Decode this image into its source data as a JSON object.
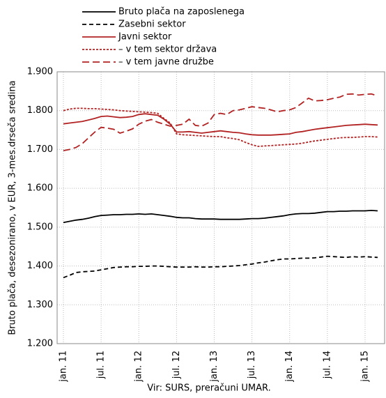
{
  "chart_data": {
    "type": "line",
    "y_label": "Bruto plača, desezonirano, v EUR, 3-mes.drseča sredina",
    "source": "Vir: SURS, preračuni UMAR.",
    "categories": [
      "jan. 11",
      null,
      null,
      null,
      null,
      null,
      "jul. 11",
      null,
      null,
      null,
      null,
      null,
      "jan. 12",
      null,
      null,
      null,
      null,
      null,
      "jul. 12",
      null,
      null,
      null,
      null,
      null,
      "jan. 13",
      null,
      null,
      null,
      null,
      null,
      "jul. 13",
      null,
      null,
      null,
      null,
      null,
      "jan. 14",
      null,
      null,
      null,
      null,
      null,
      "jul. 14",
      null,
      null,
      null,
      null,
      null,
      "jan. 15",
      null,
      null
    ],
    "ylim": [
      1200,
      1900
    ],
    "yticks": [
      {
        "value": 1200,
        "label": "1.200"
      },
      {
        "value": 1300,
        "label": "1.300"
      },
      {
        "value": 1400,
        "label": "1.400"
      },
      {
        "value": 1500,
        "label": "1.500"
      },
      {
        "value": 1600,
        "label": "1.600"
      },
      {
        "value": 1700,
        "label": "1.700"
      },
      {
        "value": 1800,
        "label": "1.800"
      },
      {
        "value": 1900,
        "label": "1.900"
      }
    ],
    "grid": true,
    "legend": "top",
    "series": [
      {
        "name": "Bruto plača na zaposlenega",
        "color": "#000000",
        "dash": "solid",
        "values": [
          1512,
          1515,
          1518,
          1520,
          1523,
          1527,
          1530,
          1531,
          1532,
          1532,
          1533,
          1533,
          1534,
          1533,
          1534,
          1532,
          1530,
          1528,
          1525,
          1524,
          1524,
          1522,
          1521,
          1521,
          1521,
          1520,
          1520,
          1520,
          1520,
          1521,
          1522,
          1522,
          1523,
          1525,
          1527,
          1529,
          1532,
          1534,
          1535,
          1535,
          1536,
          1538,
          1540,
          1540,
          1541,
          1541,
          1542,
          1542,
          1542,
          1543,
          1542
        ]
      },
      {
        "name": "Zasebni sektor",
        "color": "#000000",
        "dash": "dashed",
        "values": [
          1370,
          1376,
          1383,
          1385,
          1386,
          1387,
          1390,
          1393,
          1396,
          1397,
          1398,
          1398,
          1399,
          1399,
          1400,
          1400,
          1399,
          1398,
          1397,
          1397,
          1397,
          1398,
          1397,
          1397,
          1398,
          1398,
          1399,
          1400,
          1401,
          1403,
          1405,
          1408,
          1410,
          1413,
          1416,
          1418,
          1418,
          1419,
          1420,
          1420,
          1421,
          1423,
          1425,
          1424,
          1423,
          1422,
          1424,
          1423,
          1424,
          1423,
          1422
        ]
      },
      {
        "name": "Javni sektor",
        "color": "#b22222",
        "dash": "solid",
        "values": [
          1766,
          1768,
          1770,
          1772,
          1776,
          1780,
          1785,
          1786,
          1784,
          1782,
          1783,
          1785,
          1790,
          1792,
          1790,
          1788,
          1778,
          1765,
          1745,
          1745,
          1746,
          1744,
          1742,
          1744,
          1746,
          1748,
          1746,
          1744,
          1743,
          1740,
          1738,
          1737,
          1737,
          1737,
          1738,
          1739,
          1740,
          1744,
          1746,
          1749,
          1752,
          1754,
          1756,
          1758,
          1760,
          1762,
          1763,
          1764,
          1765,
          1764,
          1763
        ]
      },
      {
        "name": "– v tem sektor država",
        "color": "#b22222",
        "dash": "dotted",
        "values": [
          1800,
          1804,
          1806,
          1806,
          1805,
          1805,
          1804,
          1803,
          1802,
          1800,
          1799,
          1798,
          1797,
          1796,
          1795,
          1793,
          1780,
          1768,
          1740,
          1738,
          1737,
          1736,
          1735,
          1734,
          1733,
          1733,
          1730,
          1728,
          1725,
          1718,
          1712,
          1708,
          1709,
          1710,
          1711,
          1712,
          1713,
          1714,
          1716,
          1719,
          1722,
          1724,
          1726,
          1728,
          1730,
          1731,
          1731,
          1732,
          1733,
          1733,
          1732
        ]
      },
      {
        "name": "– v tem javne družbe",
        "color": "#b22222",
        "dash": "longdash",
        "values": [
          1697,
          1700,
          1705,
          1715,
          1730,
          1745,
          1757,
          1755,
          1752,
          1742,
          1747,
          1753,
          1765,
          1773,
          1777,
          1770,
          1765,
          1760,
          1762,
          1765,
          1778,
          1762,
          1760,
          1768,
          1790,
          1793,
          1790,
          1800,
          1802,
          1806,
          1810,
          1808,
          1806,
          1802,
          1797,
          1800,
          1802,
          1808,
          1820,
          1832,
          1825,
          1826,
          1828,
          1832,
          1835,
          1842,
          1843,
          1840,
          1842,
          1843,
          1838
        ]
      }
    ]
  }
}
